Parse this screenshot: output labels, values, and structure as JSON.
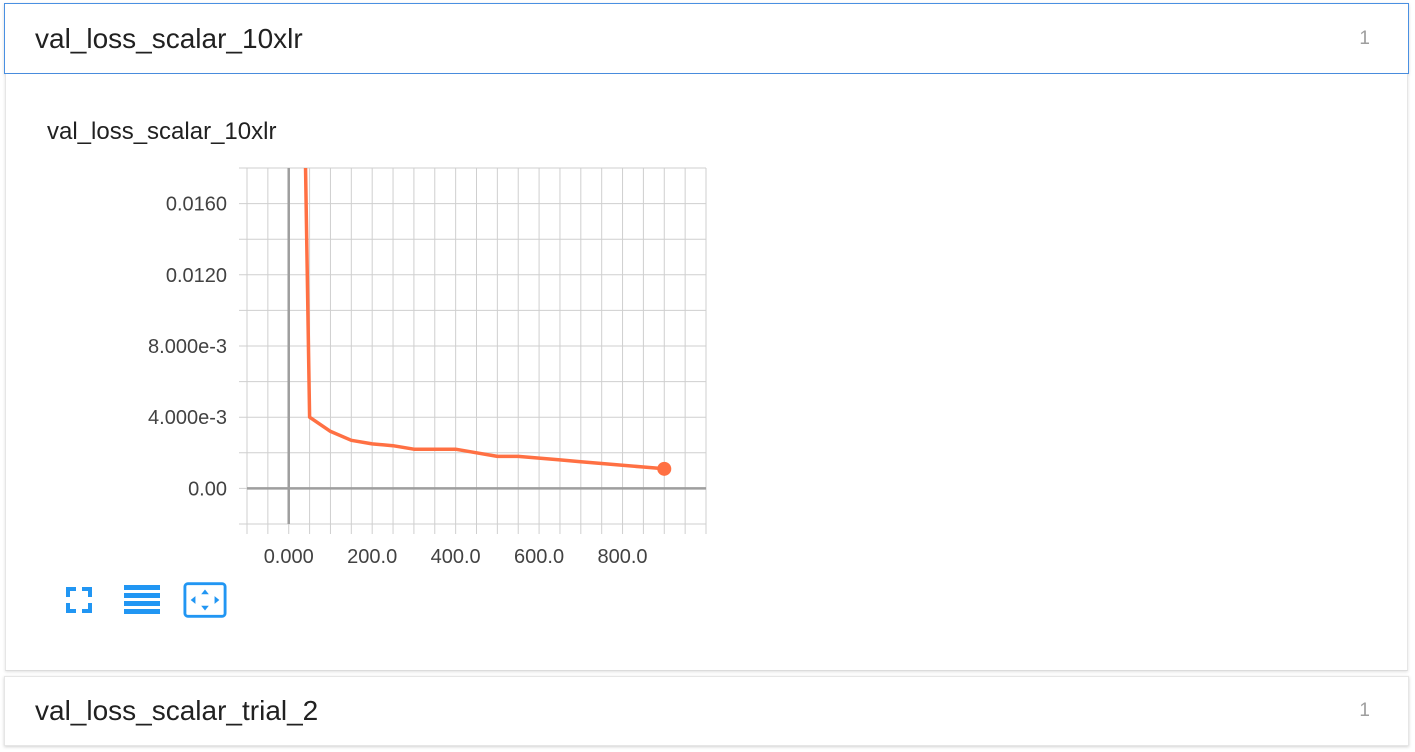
{
  "sections": [
    {
      "title": "val_loss_scalar_10xlr",
      "count": "1",
      "expanded": true
    },
    {
      "title": "val_loss_scalar_trial_2",
      "count": "1",
      "expanded": false
    }
  ],
  "colors": {
    "series": "#ff7043",
    "accent": "#2196f3",
    "header_border": "#4a90e2"
  },
  "toolbar": [
    {
      "icon": "fullscreen-icon"
    },
    {
      "icon": "list-icon"
    },
    {
      "icon": "fit-domain-icon"
    }
  ],
  "chart_data": {
    "type": "line",
    "title": "val_loss_scalar_10xlr",
    "xlabel": "",
    "ylabel": "",
    "xlim": [
      -100,
      1000
    ],
    "ylim": [
      -0.002,
      0.018
    ],
    "grid": true,
    "x_ticks": [
      0,
      200,
      400,
      600,
      800
    ],
    "x_tick_labels": [
      "0.000",
      "200.0",
      "400.0",
      "600.0",
      "800.0"
    ],
    "y_ticks": [
      0,
      0.004,
      0.008,
      0.012,
      0.016
    ],
    "y_tick_labels": [
      "0.00",
      "4.000e-3",
      "8.000e-3",
      "0.0120",
      "0.0160"
    ],
    "series": [
      {
        "x": [
          40,
          50,
          100,
          150,
          200,
          250,
          300,
          350,
          400,
          450,
          500,
          550,
          600,
          650,
          700,
          750,
          800,
          850,
          900
        ],
        "y": [
          0.0185,
          0.004,
          0.0032,
          0.0027,
          0.0025,
          0.0024,
          0.0022,
          0.0022,
          0.0022,
          0.002,
          0.0018,
          0.0018,
          0.0017,
          0.0016,
          0.0015,
          0.0014,
          0.0013,
          0.0012,
          0.0011
        ]
      }
    ]
  }
}
